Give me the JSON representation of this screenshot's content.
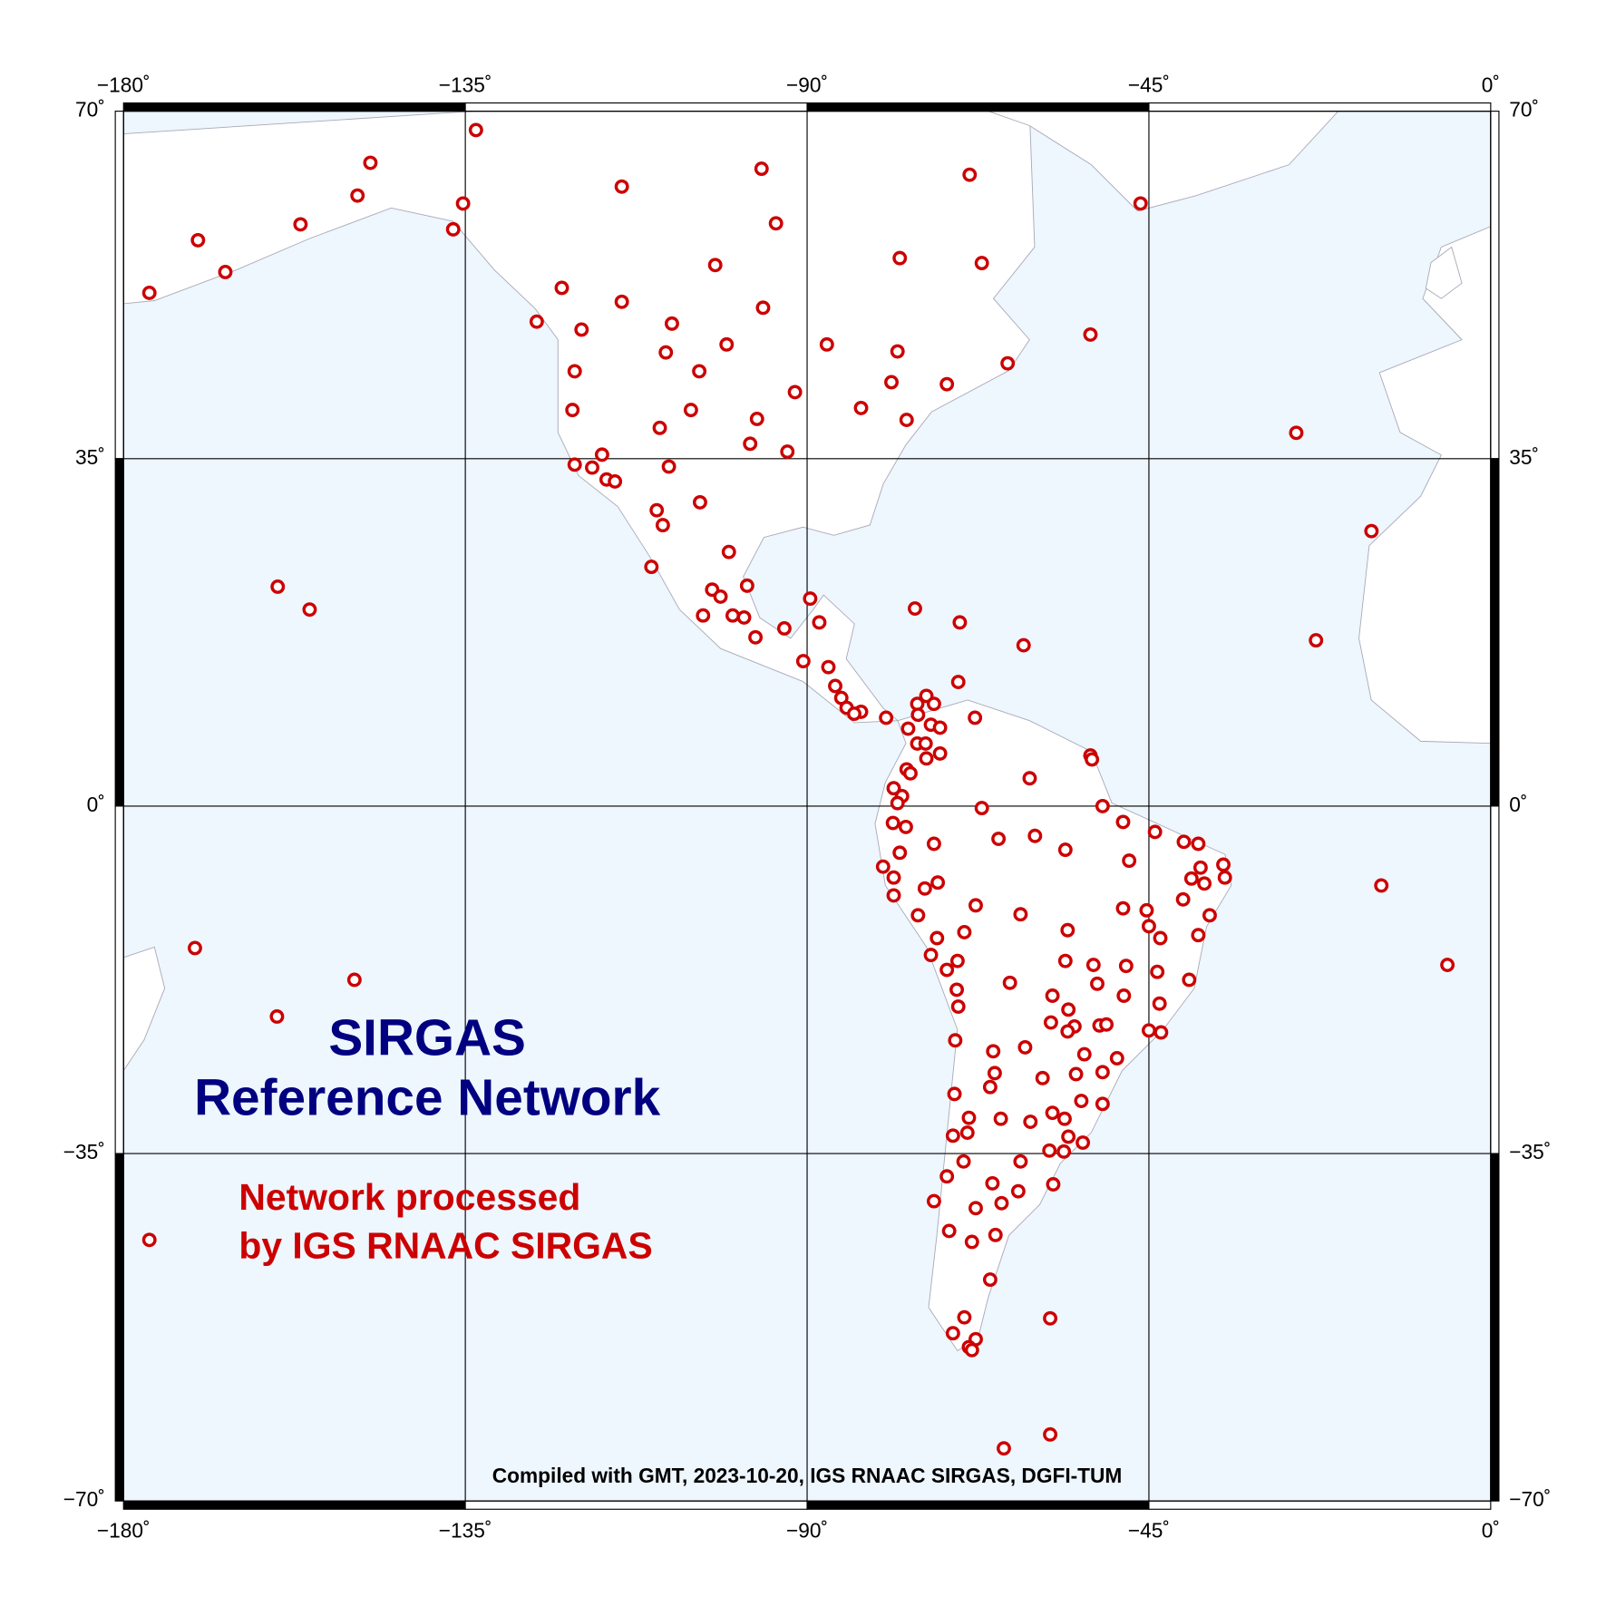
{
  "chart_data": {
    "type": "map",
    "title": [
      "SIRGAS",
      "Reference Network"
    ],
    "legend": [
      "Network processed",
      "by IGS RNAAC SIRGAS"
    ],
    "footer": "Compiled with GMT, 2023-10-20, IGS RNAAC SIRGAS, DGFI-TUM",
    "color": "#cc0000",
    "title_color": "#000080",
    "grid": true,
    "xlim": [
      -180,
      0
    ],
    "ylim": [
      -70,
      70
    ],
    "xticks": [
      {
        "value": -180,
        "label": "−180˚"
      },
      {
        "value": -135,
        "label": "−135˚"
      },
      {
        "value": -90,
        "label": "−90˚"
      },
      {
        "value": -45,
        "label": "−45˚"
      },
      {
        "value": 0,
        "label": "0˚"
      }
    ],
    "yticks": [
      {
        "value": 70,
        "label": "70˚"
      },
      {
        "value": 35,
        "label": "35˚"
      },
      {
        "value": 0,
        "label": "0˚"
      },
      {
        "value": -35,
        "label": "−35˚"
      },
      {
        "value": -70,
        "label": "−70˚"
      }
    ],
    "lon": [
      -133.6,
      -147.5,
      -149.2,
      -156.7,
      -170.2,
      -166.6,
      -176.6,
      -135.3,
      -136.6,
      -114.4,
      -96.0,
      -68.6,
      -46.1,
      -94.1,
      -77.8,
      -67.0,
      -102.1,
      -122.3,
      -114.4,
      -95.8,
      -125.6,
      -107.8,
      -119.7,
      -52.7,
      -100.6,
      -87.4,
      -108.6,
      -78.1,
      -63.6,
      -104.2,
      -120.6,
      -78.9,
      -71.6,
      -91.6,
      -120.9,
      -105.3,
      -82.9,
      -76.9,
      -96.6,
      -109.4,
      -25.6,
      -97.5,
      -92.6,
      -117.0,
      -120.6,
      -118.3,
      -108.2,
      -116.4,
      -115.3,
      -104.1,
      -109.8,
      -109.0,
      -15.7,
      -100.3,
      -110.5,
      -97.9,
      -102.5,
      -101.4,
      -89.6,
      -75.8,
      -159.7,
      -155.5,
      -103.7,
      -99.8,
      -98.3,
      -88.4,
      -69.9,
      -93.0,
      -96.8,
      -23.0,
      -61.5,
      -90.5,
      -87.2,
      -70.1,
      -86.3,
      -85.5,
      -74.3,
      -75.5,
      -73.3,
      -84.8,
      -82.9,
      -83.8,
      -75.4,
      -67.9,
      -79.6,
      -73.7,
      -72.5,
      -76.7,
      -75.5,
      -74.4,
      -72.5,
      -74.3,
      -52.7,
      -52.5,
      -76.9,
      -76.4,
      -60.7,
      -78.6,
      -77.5,
      -78.1,
      -67.0,
      -51.1,
      -48.4,
      -78.7,
      -77.0,
      -44.2,
      -60.0,
      -64.8,
      -73.3,
      -40.4,
      -38.5,
      -56.0,
      -77.8,
      -47.6,
      -35.2,
      -38.2,
      -80.0,
      -39.4,
      -35.0,
      -78.6,
      -37.7,
      -72.8,
      -14.4,
      -74.5,
      -78.6,
      -40.5,
      -67.8,
      -48.4,
      -45.3,
      -37.0,
      -61.9,
      -75.4,
      -45.0,
      -69.3,
      -55.7,
      -38.5,
      -43.5,
      -72.9,
      -170.6,
      -73.7,
      -70.2,
      -56.0,
      -5.7,
      -52.3,
      -48.0,
      -71.6,
      -43.9,
      -39.7,
      -149.6,
      -63.3,
      -51.8,
      -70.3,
      -57.7,
      -48.3,
      -43.6,
      -70.1,
      -55.6,
      -159.8,
      -57.9,
      -51.5,
      -50.6,
      -54.8,
      -55.7,
      -45.0,
      -43.4,
      -70.5,
      -61.3,
      -65.5,
      -53.5,
      -49.2,
      -65.3,
      -54.6,
      -51.1,
      -59.0,
      -65.9,
      -70.6,
      -53.9,
      -51.1,
      -57.7,
      -68.7,
      -64.5,
      -56.1,
      -60.6,
      -68.9,
      -70.8,
      -55.6,
      -53.7,
      -58.1,
      -56.2,
      -69.4,
      -61.9,
      -71.6,
      -65.6,
      -57.6,
      -62.2,
      -73.3,
      -64.4,
      -67.8,
      -71.3,
      -65.2,
      -68.3,
      -176.6,
      -65.9,
      -69.3,
      -58.0,
      -70.8,
      -67.8,
      -68.7,
      -68.3,
      -58.0,
      -64.1
    ],
    "lat": [
      68.1,
      64.8,
      61.5,
      58.6,
      57.0,
      53.8,
      51.7,
      60.7,
      58.1,
      62.4,
      64.2,
      63.6,
      60.7,
      58.7,
      55.2,
      54.7,
      54.5,
      52.2,
      50.8,
      50.2,
      48.8,
      48.6,
      48.0,
      47.5,
      46.5,
      46.5,
      45.7,
      45.8,
      44.6,
      43.8,
      43.8,
      42.7,
      42.5,
      41.7,
      39.9,
      39.9,
      40.1,
      38.9,
      39.0,
      38.1,
      37.6,
      36.5,
      35.7,
      35.4,
      34.4,
      34.1,
      34.2,
      32.9,
      32.7,
      30.6,
      29.8,
      28.3,
      27.7,
      25.6,
      24.1,
      22.2,
      21.8,
      21.1,
      20.9,
      19.9,
      22.1,
      19.8,
      19.2,
      19.2,
      19.0,
      18.5,
      18.5,
      17.9,
      17.0,
      16.7,
      16.2,
      14.6,
      14.0,
      12.5,
      12.1,
      10.9,
      11.1,
      10.3,
      10.3,
      9.9,
      9.5,
      9.3,
      9.2,
      8.9,
      8.9,
      8.2,
      7.9,
      7.8,
      6.3,
      6.3,
      5.3,
      4.8,
      5.1,
      4.7,
      3.7,
      3.3,
      2.8,
      1.8,
      1.0,
      0.3,
      -0.2,
      0.0,
      -1.6,
      -1.7,
      -2.1,
      -2.6,
      -3.0,
      -3.3,
      -3.8,
      -3.6,
      -3.8,
      -4.4,
      -4.7,
      -5.5,
      -5.9,
      -6.2,
      -6.1,
      -7.3,
      -7.2,
      -7.2,
      -7.8,
      -7.7,
      -8.0,
      -8.3,
      -9.0,
      -9.4,
      -10.0,
      -10.3,
      -10.5,
      -11.0,
      -10.9,
      -11.0,
      -12.1,
      -12.7,
      -12.5,
      -13.0,
      -13.3,
      -13.3,
      -14.3,
      -15.0,
      -15.6,
      -15.6,
      -16.0,
      -16.0,
      -16.1,
      -16.5,
      -16.7,
      -17.5,
      -17.5,
      -17.8,
      -17.9,
      -18.5,
      -19.1,
      -19.1,
      -19.9,
      -20.2,
      -20.5,
      -21.2,
      -21.8,
      -22.1,
      -22.0,
      -22.2,
      -22.7,
      -22.6,
      -22.8,
      -23.6,
      -24.3,
      -24.7,
      -25.0,
      -25.4,
      -26.9,
      -27.0,
      -26.8,
      -27.4,
      -28.3,
      -29.0,
      -29.7,
      -30.0,
      -30.9,
      -31.4,
      -31.5,
      -31.5,
      -31.8,
      -32.9,
      -33.2,
      -33.3,
      -33.9,
      -34.7,
      -34.8,
      -35.8,
      -35.8,
      -37.3,
      -38.0,
      -38.1,
      -38.8,
      -39.8,
      -40.0,
      -40.5,
      -42.8,
      -43.2,
      -43.9,
      -43.7,
      -47.7,
      -51.5,
      -51.6,
      -53.1,
      -53.7,
      -54.5,
      -54.8,
      -63.3,
      -64.7
    ]
  }
}
